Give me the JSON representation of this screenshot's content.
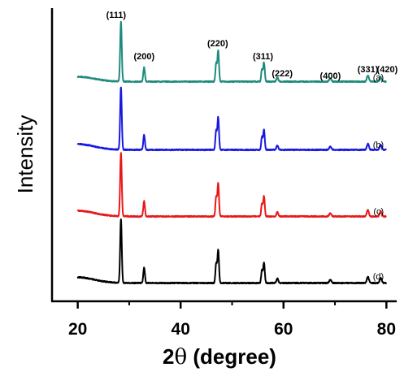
{
  "chart_data": {
    "type": "line",
    "xlabel_prefix": "2",
    "xlabel_theta": "θ",
    "xlabel_suffix": " (degree)",
    "ylabel": "Intensity",
    "xlim": [
      15,
      82
    ],
    "x_ticks": [
      20,
      40,
      60,
      80
    ],
    "y_ticks_shown": false,
    "grid": false,
    "legend": "none",
    "peak_labels": [
      {
        "text": "(111)",
        "x": 28.4
      },
      {
        "text": "(200)",
        "x": 32.9
      },
      {
        "text": "(220)",
        "x": 47.2
      },
      {
        "text": "(311)",
        "x": 56.0
      },
      {
        "text": "(222)",
        "x": 58.8
      },
      {
        "text": "(400)",
        "x": 69.1
      },
      {
        "text": "(331)",
        "x": 76.4
      },
      {
        "text": "(420)",
        "x": 78.9
      }
    ],
    "peaks": [
      {
        "x": 28.4,
        "h": 1.0,
        "w": 0.22
      },
      {
        "x": 32.9,
        "h": 0.24,
        "w": 0.22
      },
      {
        "x": 46.9,
        "h": 0.3,
        "w": 0.2
      },
      {
        "x": 47.3,
        "h": 0.52,
        "w": 0.22
      },
      {
        "x": 55.8,
        "h": 0.2,
        "w": 0.2
      },
      {
        "x": 56.2,
        "h": 0.32,
        "w": 0.22
      },
      {
        "x": 58.8,
        "h": 0.07,
        "w": 0.25
      },
      {
        "x": 69.1,
        "h": 0.05,
        "w": 0.3
      },
      {
        "x": 76.4,
        "h": 0.1,
        "w": 0.28
      },
      {
        "x": 78.9,
        "h": 0.08,
        "w": 0.28
      }
    ],
    "series": [
      {
        "label": "(a)",
        "color": "#1f8a7e",
        "baseline": 100.5,
        "scale": 73,
        "hump": 6
      },
      {
        "label": "(b)",
        "color": "#1818e0",
        "baseline": 184.5,
        "scale": 77,
        "hump": 7
      },
      {
        "label": "(c)",
        "color": "#e81818",
        "baseline": 266.5,
        "scale": 78,
        "hump": 7
      },
      {
        "label": "(d)",
        "color": "#000000",
        "baseline": 348.5,
        "scale": 78,
        "hump": 7
      }
    ]
  }
}
